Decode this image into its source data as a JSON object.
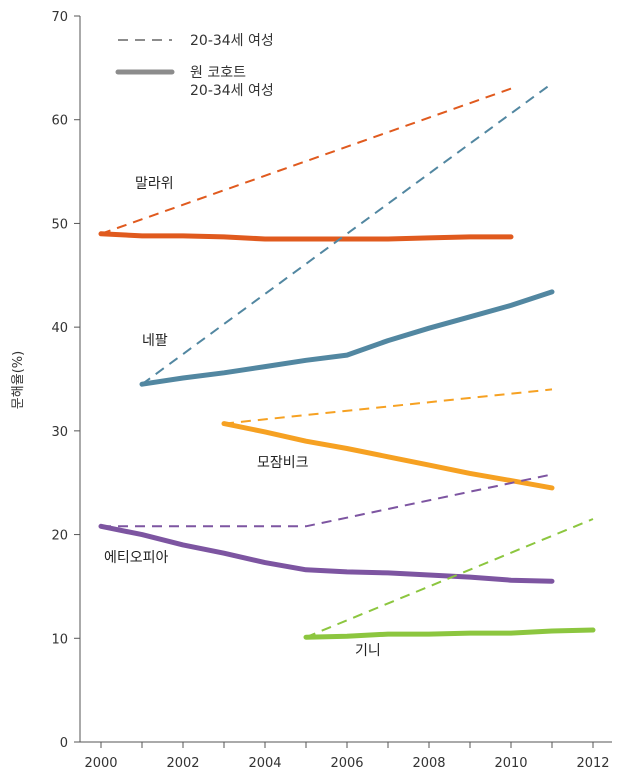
{
  "chart_data": {
    "type": "line",
    "title": "",
    "xlabel": "",
    "ylabel": "문해율(%)",
    "xlim": [
      1999.5,
      2012.5
    ],
    "ylim": [
      0,
      70
    ],
    "x_ticks": [
      2000,
      2002,
      2004,
      2006,
      2008,
      2010,
      2012
    ],
    "y_ticks": [
      0,
      10,
      20,
      30,
      40,
      50,
      60,
      70
    ],
    "grid": false,
    "legend": {
      "position": "top-left",
      "entries": [
        {
          "label": "20-34세 여성",
          "style": "dashed",
          "color": "#8c8c8c"
        },
        {
          "label": "원 코호트\n20-34세 여성",
          "style": "solid",
          "color": "#8c8c8c"
        }
      ]
    },
    "series": [
      {
        "name": "말라위",
        "color": "#e05a1e",
        "cross_section": [
          [
            2000,
            49.0
          ],
          [
            2010,
            63.0
          ]
        ],
        "cohort": [
          [
            2000,
            49.0
          ],
          [
            2001,
            48.8
          ],
          [
            2002,
            48.8
          ],
          [
            2003,
            48.7
          ],
          [
            2004,
            48.5
          ],
          [
            2005,
            48.5
          ],
          [
            2006,
            48.5
          ],
          [
            2007,
            48.5
          ],
          [
            2008,
            48.6
          ],
          [
            2009,
            48.7
          ],
          [
            2010,
            48.7
          ]
        ]
      },
      {
        "name": "네팔",
        "color": "#5287a1",
        "cross_section": [
          [
            2001,
            34.5
          ],
          [
            2011,
            63.5
          ]
        ],
        "cohort": [
          [
            2001,
            34.5
          ],
          [
            2002,
            35.1
          ],
          [
            2003,
            35.6
          ],
          [
            2004,
            36.2
          ],
          [
            2005,
            36.8
          ],
          [
            2006,
            37.3
          ],
          [
            2007,
            38.7
          ],
          [
            2008,
            39.9
          ],
          [
            2009,
            41.0
          ],
          [
            2010,
            42.1
          ],
          [
            2011,
            43.4
          ]
        ]
      },
      {
        "name": "모잠비크",
        "color": "#f6a122",
        "cross_section": [
          [
            2003,
            30.7
          ],
          [
            2011,
            34.0
          ]
        ],
        "cohort": [
          [
            2003,
            30.7
          ],
          [
            2004,
            29.9
          ],
          [
            2005,
            29.0
          ],
          [
            2006,
            28.3
          ],
          [
            2007,
            27.5
          ],
          [
            2008,
            26.7
          ],
          [
            2009,
            25.9
          ],
          [
            2010,
            25.2
          ],
          [
            2011,
            24.5
          ]
        ]
      },
      {
        "name": "에티오피아",
        "color": "#7d55a1",
        "cross_section": [
          [
            2000,
            20.8
          ],
          [
            2005,
            20.8
          ],
          [
            2011,
            25.8
          ]
        ],
        "cohort": [
          [
            2000,
            20.8
          ],
          [
            2001,
            20.0
          ],
          [
            2002,
            19.0
          ],
          [
            2003,
            18.2
          ],
          [
            2004,
            17.3
          ],
          [
            2005,
            16.6
          ],
          [
            2006,
            16.4
          ],
          [
            2007,
            16.3
          ],
          [
            2008,
            16.1
          ],
          [
            2009,
            15.9
          ],
          [
            2010,
            15.6
          ],
          [
            2011,
            15.5
          ]
        ]
      },
      {
        "name": "기니",
        "color": "#8cc63f",
        "cross_section": [
          [
            2005,
            10.1
          ],
          [
            2012,
            21.5
          ]
        ],
        "cohort": [
          [
            2005,
            10.1
          ],
          [
            2006,
            10.2
          ],
          [
            2007,
            10.4
          ],
          [
            2008,
            10.4
          ],
          [
            2009,
            10.5
          ],
          [
            2010,
            10.5
          ],
          [
            2011,
            10.7
          ],
          [
            2012,
            10.8
          ]
        ]
      }
    ]
  }
}
